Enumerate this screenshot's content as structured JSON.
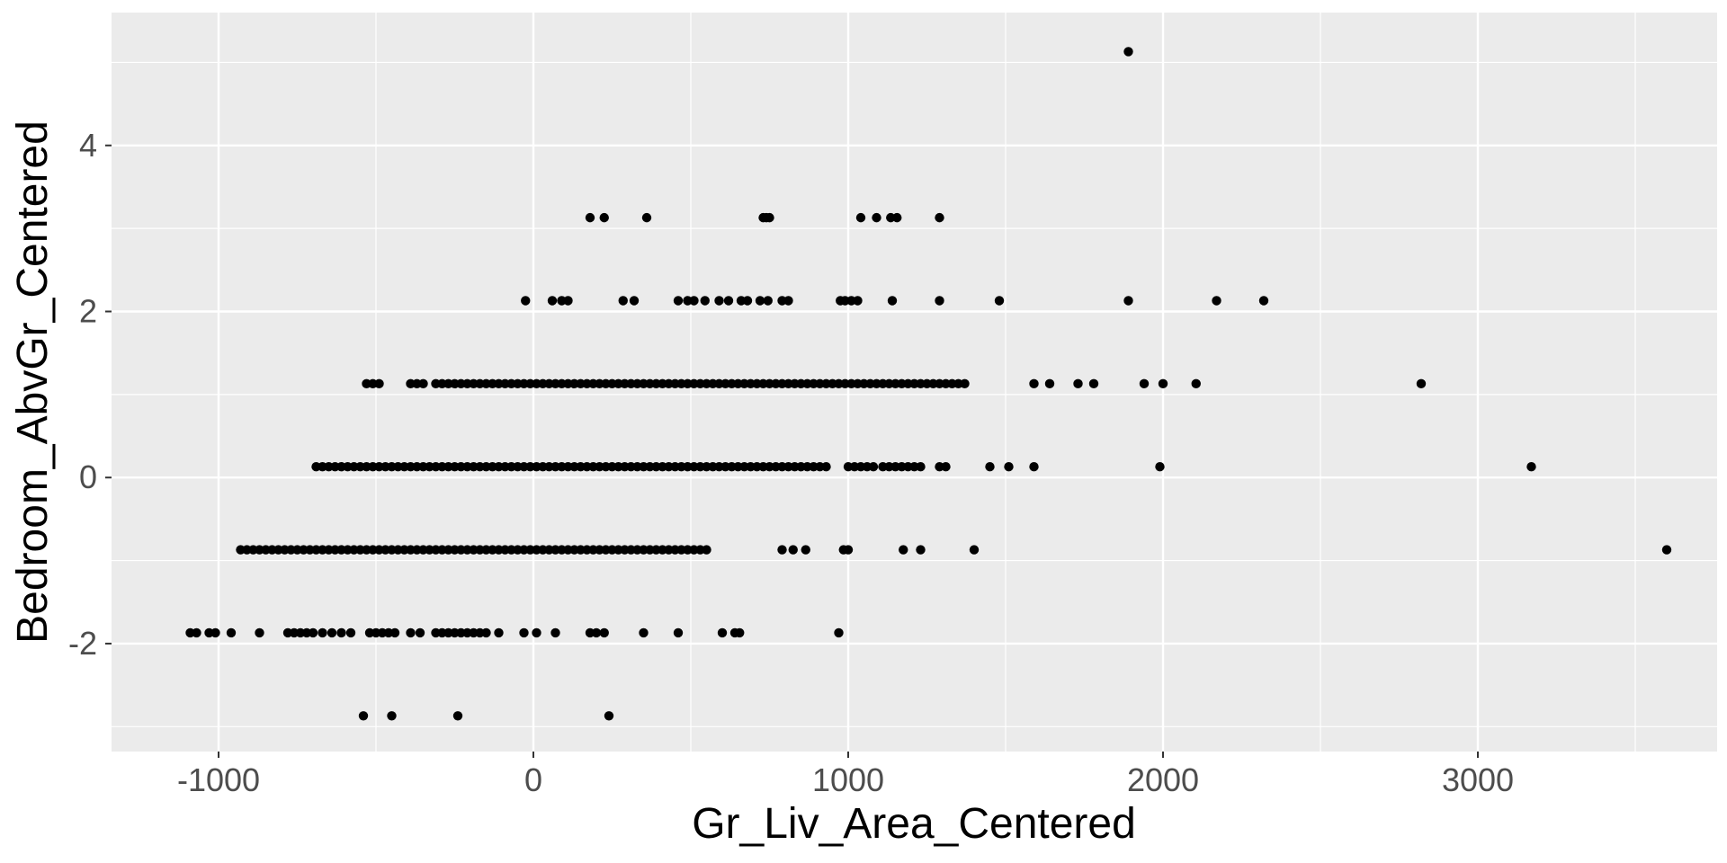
{
  "chart_data": {
    "type": "scatter",
    "title": "",
    "xlabel": "Gr_Liv_Area_Centered",
    "ylabel": "Bedroom_AbvGr_Centered",
    "xlim": [
      -1340,
      3760
    ],
    "ylim": [
      -3.3,
      5.6
    ],
    "x_ticks": [
      -1000,
      0,
      1000,
      2000,
      3000
    ],
    "x_tick_labels": [
      "-1000",
      "0",
      "1000",
      "2000",
      "3000"
    ],
    "y_ticks": [
      -2,
      0,
      2,
      4
    ],
    "y_tick_labels": [
      "-2",
      "0",
      "2",
      "4"
    ],
    "grid": true,
    "legend": "none",
    "colors": {
      "panel": "#ebebeb",
      "grid_major": "#ffffff",
      "point": "#000000"
    },
    "series": [
      {
        "points": [
          [
            1890,
            5.13
          ],
          [
            180,
            3.13
          ],
          [
            225,
            3.13
          ],
          [
            360,
            3.13
          ],
          [
            730,
            3.13
          ],
          [
            740,
            3.13
          ],
          [
            750,
            3.13
          ],
          [
            1040,
            3.13
          ],
          [
            1090,
            3.13
          ],
          [
            1135,
            3.13
          ],
          [
            1155,
            3.13
          ],
          [
            1290,
            3.13
          ],
          [
            -25,
            2.13
          ],
          [
            60,
            2.13
          ],
          [
            90,
            2.13
          ],
          [
            110,
            2.13
          ],
          [
            285,
            2.13
          ],
          [
            320,
            2.13
          ],
          [
            460,
            2.13
          ],
          [
            490,
            2.13
          ],
          [
            510,
            2.13
          ],
          [
            545,
            2.13
          ],
          [
            590,
            2.13
          ],
          [
            620,
            2.13
          ],
          [
            660,
            2.13
          ],
          [
            680,
            2.13
          ],
          [
            720,
            2.13
          ],
          [
            745,
            2.13
          ],
          [
            790,
            2.13
          ],
          [
            810,
            2.13
          ],
          [
            975,
            2.13
          ],
          [
            990,
            2.13
          ],
          [
            1010,
            2.13
          ],
          [
            1030,
            2.13
          ],
          [
            1140,
            2.13
          ],
          [
            1290,
            2.13
          ],
          [
            1480,
            2.13
          ],
          [
            1890,
            2.13
          ],
          [
            2170,
            2.13
          ],
          [
            2320,
            2.13
          ],
          [
            1590,
            1.13
          ],
          [
            1640,
            1.13
          ],
          [
            1730,
            1.13
          ],
          [
            1780,
            1.13
          ],
          [
            1940,
            1.13
          ],
          [
            2000,
            1.13
          ],
          [
            2105,
            1.13
          ],
          [
            2820,
            1.13
          ],
          [
            1450,
            0.13
          ],
          [
            1510,
            0.13
          ],
          [
            1590,
            0.13
          ],
          [
            1990,
            0.13
          ],
          [
            3170,
            0.13
          ],
          [
            790,
            -0.87
          ],
          [
            825,
            -0.87
          ],
          [
            865,
            -0.87
          ],
          [
            985,
            -0.87
          ],
          [
            1000,
            -0.87
          ],
          [
            1175,
            -0.87
          ],
          [
            1230,
            -0.87
          ],
          [
            1400,
            -0.87
          ],
          [
            3600,
            -0.87
          ],
          [
            -1090,
            -1.87
          ],
          [
            -1070,
            -1.87
          ],
          [
            -1030,
            -1.87
          ],
          [
            -1010,
            -1.87
          ],
          [
            -960,
            -1.87
          ],
          [
            -870,
            -1.87
          ],
          [
            -780,
            -1.87
          ],
          [
            -760,
            -1.87
          ],
          [
            -740,
            -1.87
          ],
          [
            -720,
            -1.87
          ],
          [
            -700,
            -1.87
          ],
          [
            -670,
            -1.87
          ],
          [
            -640,
            -1.87
          ],
          [
            -610,
            -1.87
          ],
          [
            -580,
            -1.87
          ],
          [
            -520,
            -1.87
          ],
          [
            -500,
            -1.87
          ],
          [
            -480,
            -1.87
          ],
          [
            -460,
            -1.87
          ],
          [
            -440,
            -1.87
          ],
          [
            -390,
            -1.87
          ],
          [
            -360,
            -1.87
          ],
          [
            -310,
            -1.87
          ],
          [
            -290,
            -1.87
          ],
          [
            -270,
            -1.87
          ],
          [
            -250,
            -1.87
          ],
          [
            -230,
            -1.87
          ],
          [
            -210,
            -1.87
          ],
          [
            -190,
            -1.87
          ],
          [
            -170,
            -1.87
          ],
          [
            -150,
            -1.87
          ],
          [
            -110,
            -1.87
          ],
          [
            -30,
            -1.87
          ],
          [
            10,
            -1.87
          ],
          [
            70,
            -1.87
          ],
          [
            180,
            -1.87
          ],
          [
            200,
            -1.87
          ],
          [
            225,
            -1.87
          ],
          [
            350,
            -1.87
          ],
          [
            460,
            -1.87
          ],
          [
            600,
            -1.87
          ],
          [
            640,
            -1.87
          ],
          [
            655,
            -1.87
          ],
          [
            970,
            -1.87
          ],
          [
            -540,
            -2.87
          ],
          [
            -450,
            -2.87
          ],
          [
            -240,
            -2.87
          ],
          [
            240,
            -2.87
          ]
        ],
        "runs": [
          {
            "y": 1.13,
            "x": [
              -530,
              -480
            ]
          },
          {
            "y": 1.13,
            "x": [
              -390,
              -350
            ]
          },
          {
            "y": 1.13,
            "x": [
              -310,
              -250
            ]
          },
          {
            "y": 1.13,
            "x": [
              -230,
              1370
            ]
          },
          {
            "y": 0.13,
            "x": [
              -690,
              940
            ]
          },
          {
            "y": 0.13,
            "x": [
              1000,
              1080
            ]
          },
          {
            "y": 0.13,
            "x": [
              1110,
              1230
            ]
          },
          {
            "y": 0.13,
            "x": [
              1290,
              1320
            ]
          },
          {
            "y": -0.87,
            "x": [
              -930,
              550
            ]
          }
        ]
      }
    ]
  }
}
